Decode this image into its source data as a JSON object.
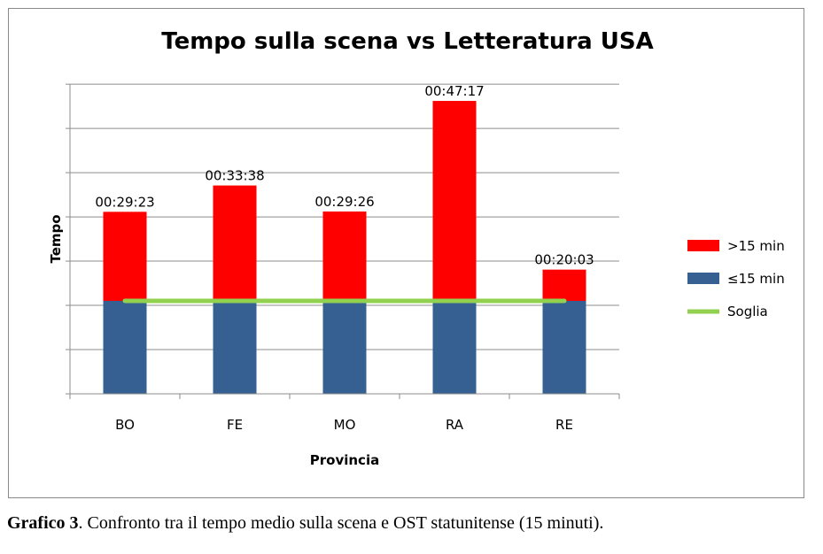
{
  "chart_data": {
    "type": "bar",
    "stacked": true,
    "title": "Tempo sulla scena vs Letteratura USA",
    "xlabel": "Provincia",
    "ylabel": "Tempo",
    "categories": [
      "BO",
      "FE",
      "MO",
      "RA",
      "RE"
    ],
    "series": [
      {
        "name": "≤15 min",
        "color": "#366092",
        "values": [
          15,
          15,
          15,
          15,
          15
        ]
      },
      {
        "name": ">15 min",
        "color": "#ff0000",
        "values": [
          14.38,
          18.63,
          14.43,
          32.28,
          5.05
        ]
      }
    ],
    "total_labels": [
      "00:29:23",
      "00:33:38",
      "00:29:26",
      "00:47:17",
      "00:20:03"
    ],
    "threshold": {
      "name": "Soglia",
      "color": "#92d050",
      "value": 15
    },
    "ylim": [
      0,
      50
    ],
    "y_tick_step": 7.14,
    "y_tick_labels_shown": false,
    "grid": true,
    "legend_position": "right"
  },
  "caption": {
    "label": "Grafico 3",
    "text": ". Confronto tra il tempo medio sulla scena e OST statunitense (15 minuti)."
  }
}
